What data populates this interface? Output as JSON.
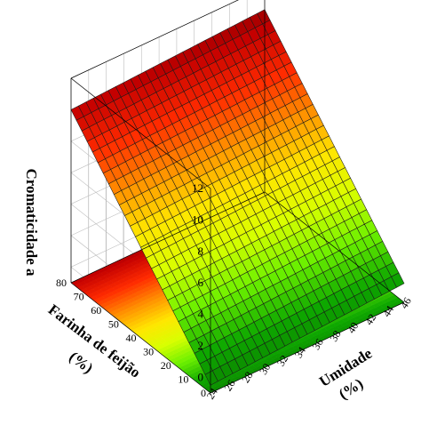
{
  "chart_data": {
    "type": "surface",
    "title": "",
    "zlabel": "Cromaticidade a",
    "xlabel": "Umidade",
    "xlabel_unit": "(%)",
    "ylabel": "Farinha de feijão",
    "ylabel_unit": "(%)",
    "x_range": [
      24,
      46
    ],
    "y_range": [
      0,
      80
    ],
    "z_range": [
      -1,
      12
    ],
    "x_ticks": [
      "24",
      "26",
      "28",
      "30",
      "32",
      "34",
      "36",
      "38",
      "40",
      "42",
      "44",
      "46"
    ],
    "y_ticks": [
      "0",
      "10",
      "20",
      "30",
      "40",
      "50",
      "60",
      "70",
      "80"
    ],
    "z_ticks": [
      "0",
      "2",
      "4",
      "6",
      "8",
      "10",
      "12"
    ],
    "surface_corners": [
      {
        "umidade": 24,
        "farinha": 80,
        "cromaticidade": 10.0
      },
      {
        "umidade": 46,
        "farinha": 80,
        "cromaticidade": 10.6
      },
      {
        "umidade": 46,
        "farinha": 0,
        "cromaticidade": 0.2
      },
      {
        "umidade": 24,
        "farinha": 0,
        "cromaticidade": -0.5
      }
    ],
    "grid": true,
    "color_scale": [
      "#6b0000",
      "#c40000",
      "#ff2a00",
      "#ff9000",
      "#ffe600",
      "#d8ff00",
      "#6cf000",
      "#0ea800",
      "#0a7a00"
    ]
  }
}
